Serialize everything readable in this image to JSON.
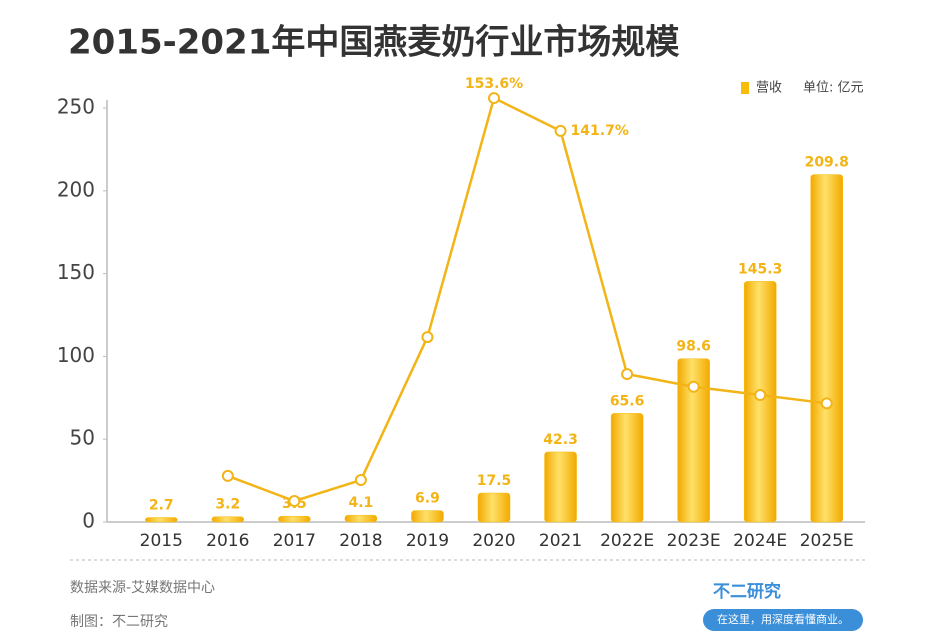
{
  "chart_data": {
    "type": "bar-line",
    "title": "2015-2021年中国燕麦奶行业市场规模",
    "unit": "单位: 亿元",
    "categories": [
      "2015",
      "2016",
      "2017",
      "2018",
      "2019",
      "2020",
      "2021",
      "2022E",
      "2023E",
      "2024E",
      "2025E"
    ],
    "series": [
      {
        "name": "营收",
        "type": "bar",
        "color": "#f7bc0a",
        "values": [
          2.7,
          3.2,
          3.5,
          4.1,
          6.9,
          17.5,
          42.3,
          65.6,
          98.6,
          145.3,
          209.8
        ]
      },
      {
        "type": "line",
        "axis": "y2",
        "color": "#f2b416",
        "values": [
          null,
          16.7,
          7.6,
          15.2,
          67,
          153.6,
          141.7,
          53.6,
          49,
          46,
          43
        ],
        "value_labels": [
          null,
          null,
          null,
          null,
          null,
          "153.6%",
          "141.7%",
          null,
          null,
          null,
          null
        ]
      }
    ],
    "ylim": [
      0,
      250
    ],
    "yticks": [
      0,
      50,
      100,
      150,
      200,
      250
    ],
    "y2lim": [
      0,
      150
    ],
    "source": "数据来源-艾媒数据中心",
    "credit": "制图：不二研究",
    "brand": "不二研究",
    "slogan": "在这里，用深度看懂商业。"
  }
}
